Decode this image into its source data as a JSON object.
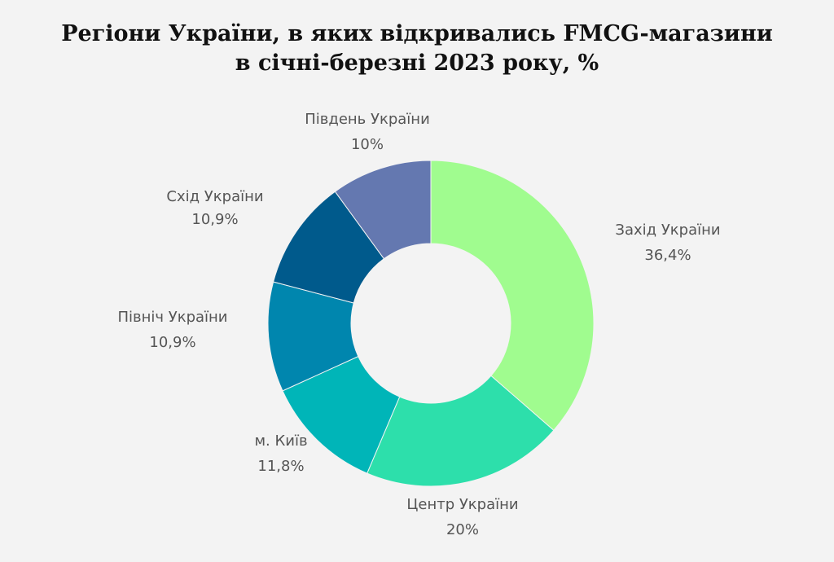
{
  "chart_data": {
    "type": "donut",
    "title": "Регіони України, в яких відкривались FMCG-магазини в січні-березні 2023 року, %",
    "categories": [
      "Захід України",
      "Центр України",
      "м. Київ",
      "Північ України",
      "Схід України",
      "Південь України"
    ],
    "values": [
      36.4,
      20,
      11.8,
      10.9,
      10.9,
      10
    ],
    "value_labels": [
      "36,4%",
      "20%",
      "11,8%",
      "10,9%",
      "10,9%",
      "10%"
    ],
    "colors": [
      "#a0fc8f",
      "#2ddfab",
      "#00b5b8",
      "#0086ae",
      "#005a8c",
      "#6478b0"
    ]
  }
}
